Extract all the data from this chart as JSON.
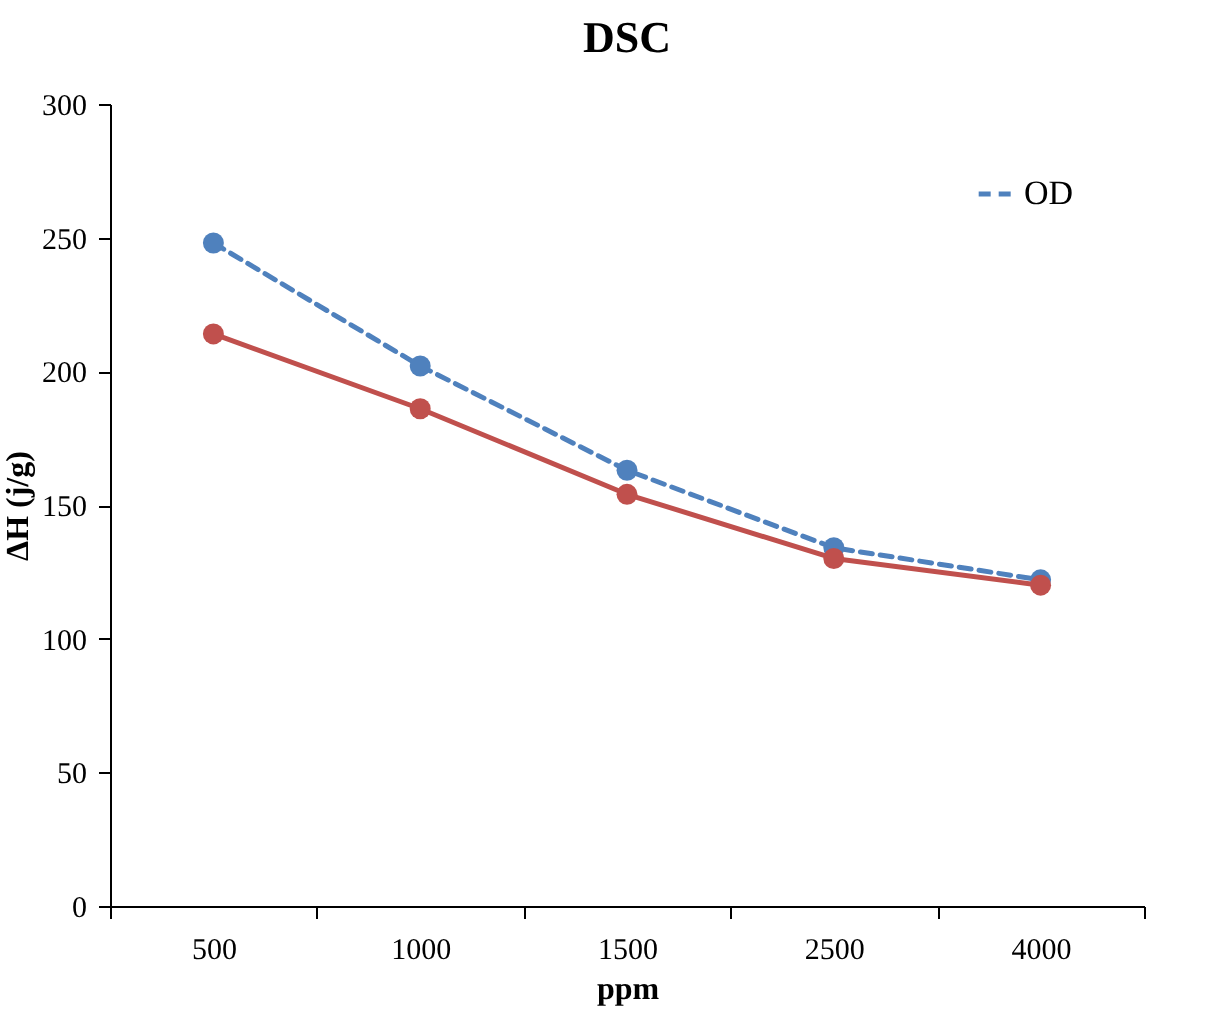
{
  "chart_data": {
    "type": "line",
    "title": "DSC",
    "xlabel": "ppm",
    "ylabel": "ΔH (j/g)",
    "categories": [
      "500",
      "1000",
      "1500",
      "2500",
      "4000"
    ],
    "series": [
      {
        "name": "OD",
        "color": "#4f81bd",
        "line_style": "dashed",
        "values": [
          248,
          202,
          163,
          134,
          122
        ]
      },
      {
        "color": "#c0504d",
        "line_style": "solid",
        "values": [
          214,
          186,
          154,
          130,
          120
        ]
      }
    ],
    "ylim": [
      0,
      300
    ],
    "yticks": [
      0,
      50,
      100,
      150,
      200,
      250,
      300
    ],
    "grid": false,
    "legend": "top right",
    "marker": "circle"
  }
}
